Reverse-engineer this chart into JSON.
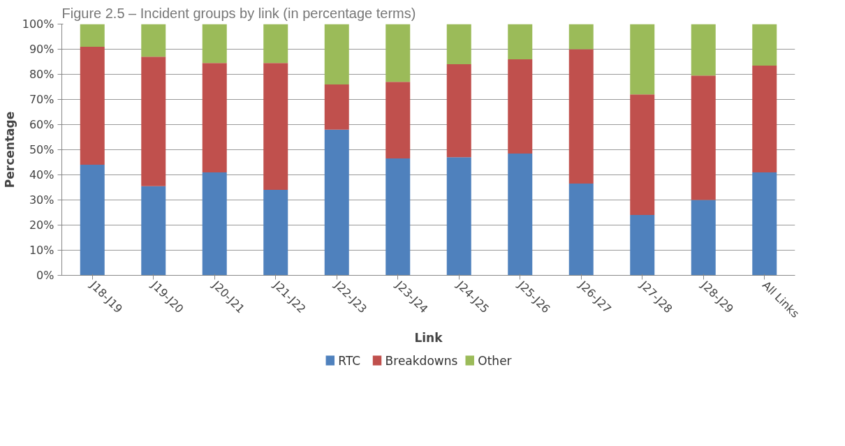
{
  "chart_data": {
    "type": "bar",
    "title": "Figure 2.5 – Incident groups by link (in percentage terms)",
    "xlabel": "Link",
    "ylabel": "Percentage",
    "categories": [
      "J18-J19",
      "J19-J20",
      "J20-J21",
      "J21-J22",
      "J22-J23",
      "J23-J24",
      "J24-J25",
      "J25-J26",
      "J26-J27",
      "J27-J28",
      "J28-J29",
      "All Links"
    ],
    "series": [
      {
        "name": "RTC",
        "color": "#4f81bd",
        "values": [
          44,
          35.5,
          41,
          34,
          58,
          46.5,
          47,
          48.5,
          36.5,
          24,
          30,
          41
        ]
      },
      {
        "name": "Breakdowns",
        "color": "#c0504d",
        "values": [
          47,
          51.5,
          43.5,
          50.5,
          18,
          30.5,
          37,
          37.5,
          53.5,
          48,
          49.5,
          42.5
        ]
      },
      {
        "name": "Other",
        "color": "#9bbb59",
        "values": [
          9,
          13,
          15.5,
          15.5,
          24,
          23,
          16,
          14,
          10,
          28,
          20.5,
          16.5
        ]
      }
    ],
    "stacked": true,
    "ylim": [
      0,
      100
    ],
    "yticks": [
      {
        "value": 0,
        "label": "0%"
      },
      {
        "value": 10,
        "label": "10%"
      },
      {
        "value": 20,
        "label": "20%"
      },
      {
        "value": 30,
        "label": "30%"
      },
      {
        "value": 40,
        "label": "40%"
      },
      {
        "value": 50,
        "label": "50%"
      },
      {
        "value": 60,
        "label": "60%"
      },
      {
        "value": 70,
        "label": "70%"
      },
      {
        "value": 80,
        "label": "80%"
      },
      {
        "value": 90,
        "label": "90%"
      },
      {
        "value": 100,
        "label": "100%"
      }
    ],
    "grid": "y",
    "legend": "bottom"
  }
}
